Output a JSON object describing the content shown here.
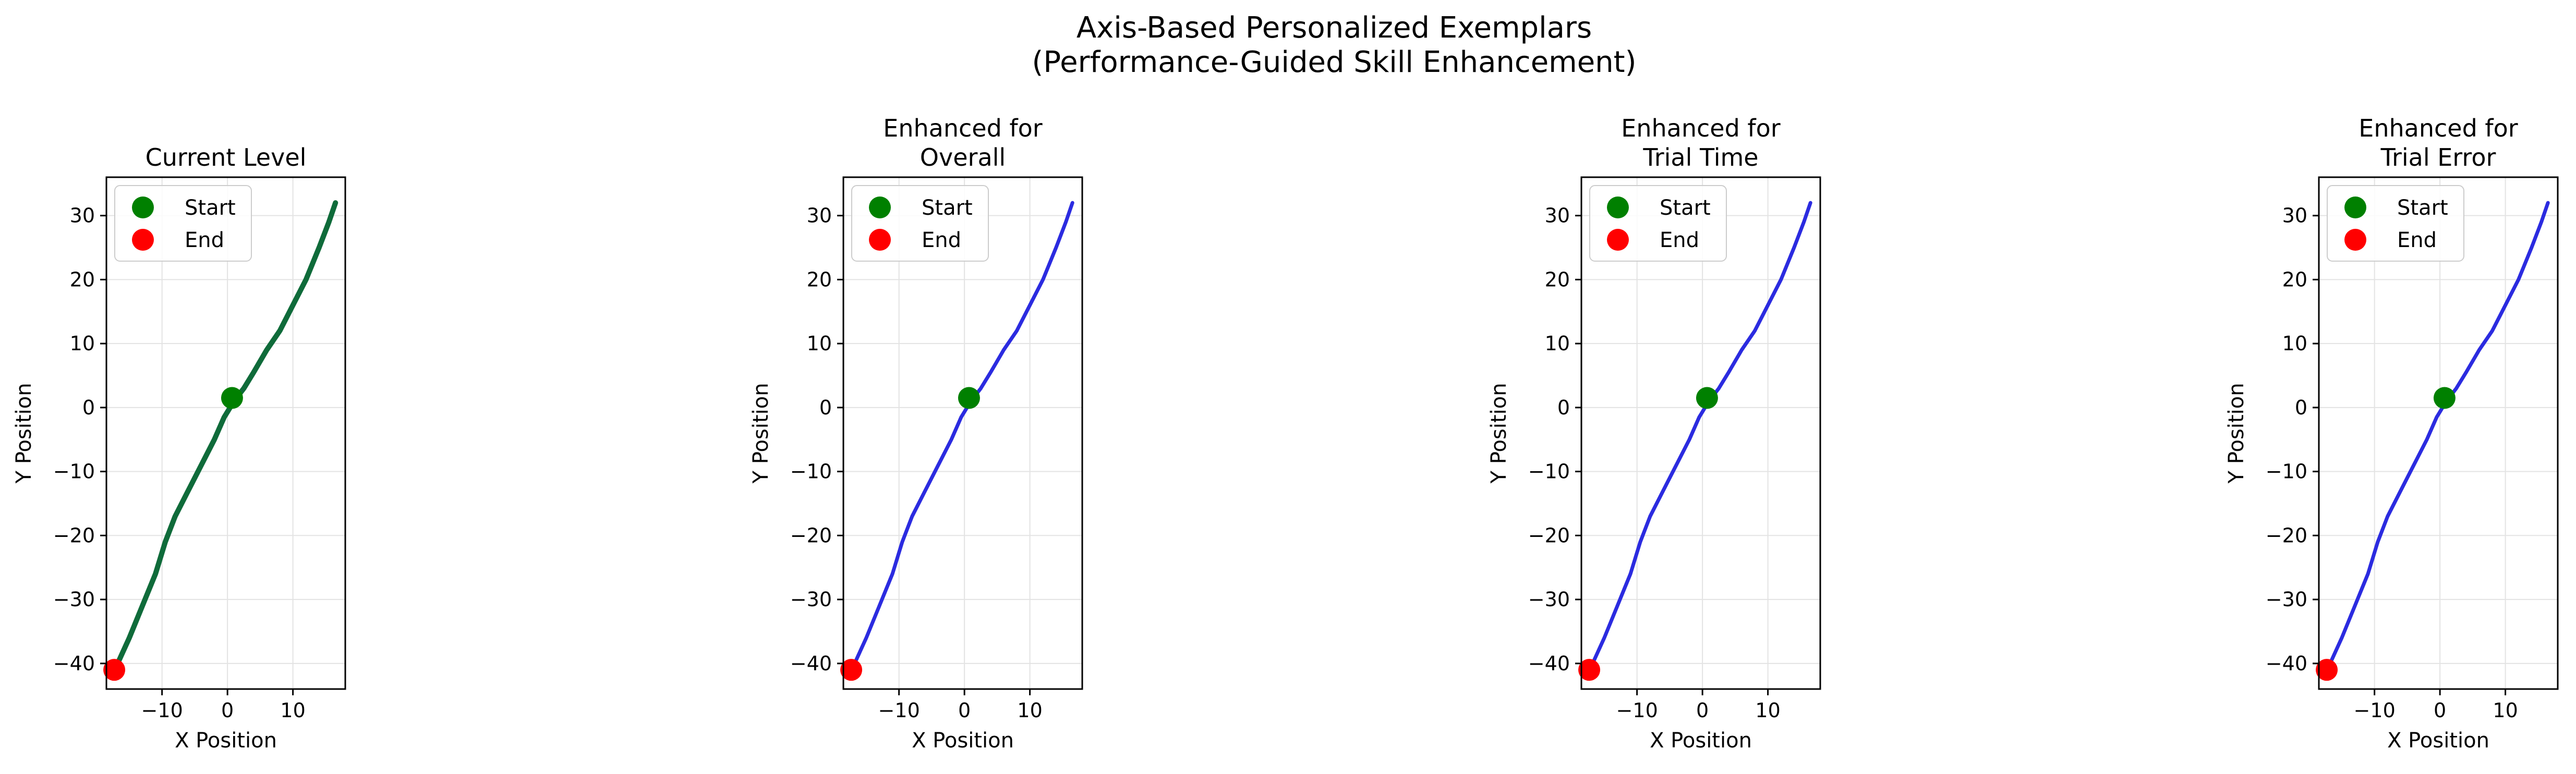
{
  "figure": {
    "title_line1": "Axis-Based Personalized Exemplars",
    "title_line2": "(Performance-Guided Skill Enhancement)"
  },
  "colors": {
    "current": "#0f6b3a",
    "enhanced": "#2b2be0",
    "start": "#008000",
    "end": "#ff0000",
    "grid": "#e3e3e3"
  },
  "chart_data": [
    {
      "type": "line",
      "title_lines": [
        "Current Level"
      ],
      "xlabel": "X Position",
      "ylabel": "Y Position",
      "xlim": [
        -18.5,
        18
      ],
      "ylim": [
        -44,
        36
      ],
      "xticks": [
        -10,
        0,
        10
      ],
      "yticks": [
        -40,
        -30,
        -20,
        -10,
        0,
        10,
        20,
        30
      ],
      "grid": true,
      "legend": {
        "placement": "top-left",
        "entries": [
          "Start",
          "End"
        ]
      },
      "series": [
        {
          "color_key": "current",
          "x": [
            16.5,
            15.5,
            14,
            12,
            10,
            8,
            6,
            4,
            2.5,
            1,
            -0.5,
            -2,
            -4,
            -6,
            -8,
            -9.5,
            -11,
            -13,
            -15,
            -17,
            -17.3
          ],
          "y": [
            32,
            29,
            25,
            20,
            16,
            12,
            9,
            5.5,
            3,
            1,
            -1.5,
            -5,
            -9,
            -13,
            -17,
            -21,
            -26,
            -31,
            -36,
            -40.5,
            -41
          ]
        }
      ],
      "start_point": {
        "x": 0.7,
        "y": 1.5,
        "label": "Start"
      },
      "end_point": {
        "x": -17.3,
        "y": -41,
        "label": "End"
      }
    },
    {
      "type": "line",
      "title_lines": [
        "Enhanced for",
        "Overall"
      ],
      "xlabel": "X Position",
      "ylabel": "Y Position",
      "xlim": [
        -18.5,
        18
      ],
      "ylim": [
        -44,
        36
      ],
      "xticks": [
        -10,
        0,
        10
      ],
      "yticks": [
        -40,
        -30,
        -20,
        -10,
        0,
        10,
        20,
        30
      ],
      "grid": true,
      "legend": {
        "placement": "top-left",
        "entries": [
          "Start",
          "End"
        ]
      },
      "series": [
        {
          "color_key": "enhanced",
          "x": [
            16.5,
            15.5,
            14,
            12,
            10,
            8,
            6,
            4,
            2.5,
            1,
            -0.5,
            -2,
            -4,
            -6,
            -8,
            -9.5,
            -11,
            -13,
            -15,
            -17,
            -17.3
          ],
          "y": [
            32,
            29,
            25,
            20,
            16,
            12,
            9,
            5.5,
            3,
            1,
            -1.5,
            -5,
            -9,
            -13,
            -17,
            -21,
            -26,
            -31,
            -36,
            -40.5,
            -41
          ]
        }
      ],
      "start_point": {
        "x": 0.7,
        "y": 1.5,
        "label": "Start"
      },
      "end_point": {
        "x": -17.3,
        "y": -41,
        "label": "End"
      }
    },
    {
      "type": "line",
      "title_lines": [
        "Enhanced for",
        "Trial Time"
      ],
      "xlabel": "X Position",
      "ylabel": "Y Position",
      "xlim": [
        -18.5,
        18
      ],
      "ylim": [
        -44,
        36
      ],
      "xticks": [
        -10,
        0,
        10
      ],
      "yticks": [
        -40,
        -30,
        -20,
        -10,
        0,
        10,
        20,
        30
      ],
      "grid": true,
      "legend": {
        "placement": "top-left",
        "entries": [
          "Start",
          "End"
        ]
      },
      "series": [
        {
          "color_key": "enhanced",
          "x": [
            16.5,
            15.5,
            14,
            12,
            10,
            8,
            6,
            4,
            2.5,
            1,
            -0.5,
            -2,
            -4,
            -6,
            -8,
            -9.5,
            -11,
            -13,
            -15,
            -17,
            -17.3
          ],
          "y": [
            32,
            29,
            25,
            20,
            16,
            12,
            9,
            5.5,
            3,
            1,
            -1.5,
            -5,
            -9,
            -13,
            -17,
            -21,
            -26,
            -31,
            -36,
            -40.5,
            -41
          ]
        }
      ],
      "start_point": {
        "x": 0.7,
        "y": 1.5,
        "label": "Start"
      },
      "end_point": {
        "x": -17.3,
        "y": -41,
        "label": "End"
      }
    },
    {
      "type": "line",
      "title_lines": [
        "Enhanced for",
        "Trial Error"
      ],
      "xlabel": "X Position",
      "ylabel": "Y Position",
      "xlim": [
        -18.5,
        18
      ],
      "ylim": [
        -44,
        36
      ],
      "xticks": [
        -10,
        0,
        10
      ],
      "yticks": [
        -40,
        -30,
        -20,
        -10,
        0,
        10,
        20,
        30
      ],
      "grid": true,
      "legend": {
        "placement": "top-left",
        "entries": [
          "Start",
          "End"
        ]
      },
      "series": [
        {
          "color_key": "enhanced",
          "x": [
            16.5,
            15.5,
            14,
            12,
            10,
            8,
            6,
            4,
            2.5,
            1,
            -0.5,
            -2,
            -4,
            -6,
            -8,
            -9.5,
            -11,
            -13,
            -15,
            -17,
            -17.3
          ],
          "y": [
            32,
            29,
            25,
            20,
            16,
            12,
            9,
            5.5,
            3,
            1,
            -1.5,
            -5,
            -9,
            -13,
            -17,
            -21,
            -26,
            -31,
            -36,
            -40.5,
            -41
          ]
        }
      ],
      "start_point": {
        "x": 0.7,
        "y": 1.5,
        "label": "Start"
      },
      "end_point": {
        "x": -17.3,
        "y": -41,
        "label": "End"
      }
    }
  ]
}
